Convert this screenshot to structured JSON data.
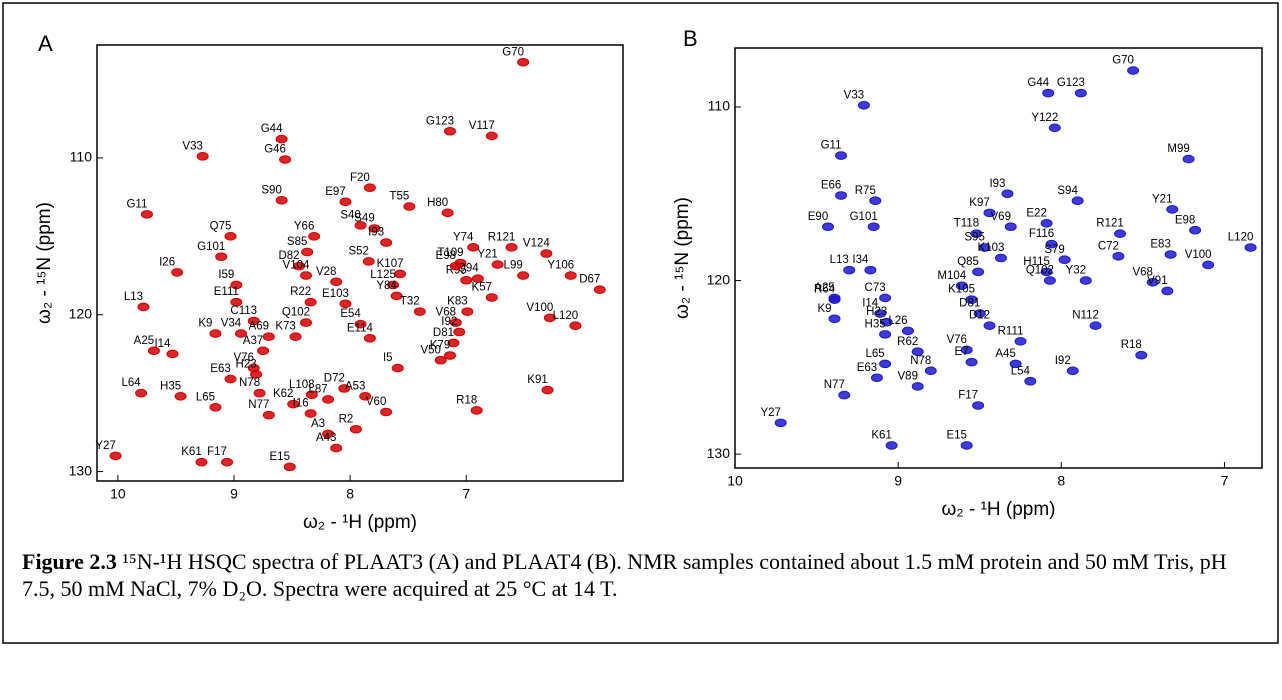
{
  "chart_data": [
    {
      "type": "scatter",
      "panel": "A",
      "xlabel": "ω₂ - ¹H (ppm)",
      "ylabel": "ω₂ - ¹⁵N (ppm)",
      "xlim": [
        10.18,
        5.65
      ],
      "ylim": [
        130.6,
        102.8
      ],
      "xticks": [
        10,
        9,
        8,
        7
      ],
      "yticks": [
        110,
        120,
        130
      ],
      "series": [
        {
          "color": "#d40000",
          "labels": [
            "G70",
            "V33",
            "G11",
            "G44",
            "G46",
            "G123",
            "V117",
            "F20",
            "S90",
            "E97",
            "T55",
            "H80",
            "Y66",
            "S40",
            "S49",
            "Q75",
            "I93",
            "G101",
            "S85",
            "D82",
            "S52",
            "Y74",
            "R121",
            "T109",
            "Y21",
            "V124",
            "V104",
            "V28",
            "K107",
            "L125",
            "L99",
            "Y106",
            "D67",
            "Q94",
            "R95",
            "E98",
            "K57",
            "I59",
            "I26",
            "E111",
            "L13",
            "R22",
            "E103",
            "Y84",
            "K83",
            "T32",
            "C113",
            "V100",
            "L120",
            "Q102",
            "K9",
            "V34",
            "A69",
            "K73",
            "E54",
            "V68",
            "I92",
            "D81",
            "E114",
            "K79",
            "V50",
            "I5",
            "A25",
            "I14",
            "A37",
            "V76",
            "H23",
            "L64",
            "H35",
            "E63",
            "L65",
            "N77",
            "K62",
            "I16",
            "L108",
            "L87",
            "D72",
            "A53",
            "V60",
            "R2",
            "A3",
            "A43",
            "N78",
            "R18",
            "K91",
            "Y27",
            "K61",
            "F17",
            "E15"
          ],
          "x": [
            6.51,
            9.27,
            9.75,
            8.59,
            8.56,
            7.14,
            6.78,
            7.83,
            8.59,
            8.04,
            7.49,
            7.16,
            8.31,
            7.91,
            7.79,
            9.03,
            7.69,
            9.11,
            8.37,
            8.44,
            7.84,
            6.94,
            6.61,
            7.05,
            6.73,
            6.31,
            8.38,
            8.12,
            7.57,
            7.63,
            6.51,
            6.1,
            5.85,
            6.9,
            7.0,
            7.09,
            6.78,
            8.98,
            9.49,
            8.98,
            9.78,
            8.34,
            8.04,
            7.6,
            6.99,
            7.4,
            8.83,
            6.28,
            6.06,
            8.38,
            9.16,
            8.94,
            8.7,
            8.47,
            7.91,
            7.09,
            7.06,
            7.11,
            7.83,
            7.14,
            7.22,
            7.59,
            9.69,
            9.53,
            8.75,
            8.83,
            8.81,
            9.8,
            9.46,
            9.03,
            9.16,
            8.7,
            8.49,
            8.34,
            8.33,
            8.19,
            8.05,
            7.87,
            7.69,
            7.95,
            8.19,
            8.12,
            8.78,
            6.91,
            6.3,
            10.02,
            9.28,
            9.06,
            8.52
          ],
          "values": [
            103.9,
            109.9,
            113.6,
            108.8,
            110.1,
            108.3,
            108.6,
            111.9,
            112.7,
            112.8,
            113.1,
            113.5,
            115.0,
            114.3,
            114.5,
            115.0,
            115.4,
            116.3,
            116.0,
            116.9,
            116.6,
            115.7,
            115.7,
            116.7,
            116.8,
            116.1,
            117.5,
            117.9,
            117.4,
            118.1,
            117.5,
            117.5,
            118.4,
            117.7,
            117.8,
            116.9,
            118.9,
            118.1,
            117.3,
            119.2,
            119.5,
            119.2,
            119.3,
            118.8,
            119.8,
            119.8,
            120.4,
            120.2,
            120.7,
            120.5,
            121.2,
            121.2,
            121.4,
            121.4,
            120.6,
            120.5,
            121.1,
            121.8,
            121.5,
            122.6,
            122.9,
            123.4,
            122.3,
            122.5,
            122.3,
            123.4,
            123.8,
            125.0,
            125.2,
            124.1,
            125.9,
            126.4,
            125.7,
            126.3,
            125.1,
            125.4,
            124.7,
            125.2,
            126.2,
            127.3,
            127.6,
            128.5,
            125.0,
            126.1,
            124.8,
            129.0,
            129.4,
            129.4,
            129.7
          ]
        }
      ]
    },
    {
      "type": "scatter",
      "panel": "B",
      "xlabel": "ω₂ - ¹H (ppm)",
      "ylabel": "ω₂ - ¹⁵N (ppm)",
      "xlim": [
        10.0,
        6.77
      ],
      "ylim": [
        130.8,
        106.6
      ],
      "xticks": [
        10,
        9,
        8,
        7
      ],
      "yticks": [
        110,
        120,
        130
      ],
      "series": [
        {
          "color": "#1a1acc",
          "labels": [
            "G70",
            "V33",
            "G44",
            "G123",
            "Y122",
            "G11",
            "M99",
            "E66",
            "R75",
            "I93",
            "S94",
            "K97",
            "Y21",
            "E90",
            "G101",
            "V69",
            "E22",
            "E98",
            "R121",
            "T118",
            "S95",
            "F116",
            "C72",
            "E83",
            "L120",
            "K103",
            "S79",
            "H115",
            "Q85",
            "L13",
            "I34",
            "V100",
            "Y32",
            "M104",
            "V68",
            "V91",
            "Q102",
            "C73",
            "A25",
            "K105",
            "D81",
            "R64",
            "I14",
            "N112",
            "D12",
            "K9",
            "H23",
            "L26",
            "R111",
            "V76",
            "H35",
            "R62",
            "I92",
            "L65",
            "E7",
            "A45",
            "R18",
            "N78",
            "E63",
            "L54",
            "V89",
            "N77",
            "F17",
            "Y27",
            "K61",
            "E15"
          ],
          "x": [
            7.56,
            9.21,
            8.08,
            7.88,
            8.04,
            9.35,
            7.22,
            9.35,
            9.14,
            8.33,
            7.9,
            8.44,
            7.32,
            9.43,
            9.15,
            8.31,
            8.09,
            7.18,
            7.64,
            8.52,
            8.47,
            8.06,
            7.65,
            7.33,
            6.84,
            8.37,
            7.98,
            8.09,
            8.51,
            9.3,
            9.17,
            7.1,
            7.85,
            8.61,
            7.44,
            7.35,
            8.07,
            9.08,
            9.39,
            8.55,
            8.5,
            9.39,
            9.11,
            7.79,
            8.44,
            9.39,
            9.07,
            8.94,
            8.25,
            8.58,
            9.08,
            8.88,
            7.93,
            9.08,
            8.55,
            8.28,
            7.51,
            8.8,
            9.13,
            8.19,
            8.88,
            9.33,
            8.51,
            9.72,
            9.04,
            8.58
          ],
          "values": [
            107.9,
            109.9,
            109.2,
            109.2,
            111.2,
            112.8,
            113.0,
            115.1,
            115.4,
            115.0,
            115.4,
            116.1,
            115.9,
            116.9,
            116.9,
            116.9,
            116.7,
            117.1,
            117.3,
            117.3,
            118.1,
            117.9,
            118.6,
            118.5,
            118.1,
            118.7,
            118.8,
            119.5,
            119.5,
            119.4,
            119.4,
            119.1,
            120.0,
            120.3,
            120.1,
            120.6,
            120.0,
            121.0,
            121.0,
            121.1,
            121.9,
            121.1,
            121.9,
            122.6,
            122.6,
            122.2,
            122.4,
            122.9,
            123.5,
            124.0,
            123.1,
            124.1,
            125.2,
            124.8,
            124.7,
            124.8,
            124.3,
            125.2,
            125.6,
            125.8,
            126.1,
            126.6,
            127.2,
            128.2,
            129.5,
            129.5
          ]
        }
      ]
    }
  ],
  "caption": {
    "label": "Figure 2.3",
    "text": " ¹⁵N-¹H HSQC spectra of PLAAT3 (A) and PLAAT4 (B). NMR samples contained about 1.5 mM protein and 50 mM Tris, pH 7.5, 50 mM NaCl, 7% D₂O. Spectra were acquired at 25 °C at 14 T."
  }
}
